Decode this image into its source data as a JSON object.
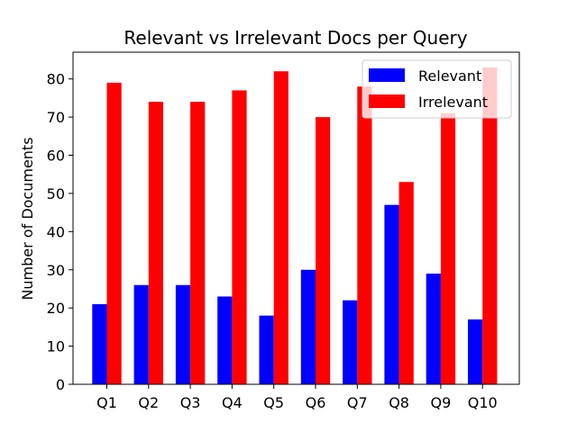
{
  "chart_data": {
    "type": "bar",
    "title": "Relevant vs Irrelevant Docs per Query",
    "xlabel": "",
    "ylabel": "Number of Documents",
    "categories": [
      "Q1",
      "Q2",
      "Q3",
      "Q4",
      "Q5",
      "Q6",
      "Q7",
      "Q8",
      "Q9",
      "Q10"
    ],
    "series": [
      {
        "name": "Relevant",
        "color": "#0000ff",
        "values": [
          21,
          26,
          26,
          23,
          18,
          30,
          22,
          47,
          29,
          17
        ]
      },
      {
        "name": "Irrelevant",
        "color": "#ff0000",
        "values": [
          79,
          74,
          74,
          77,
          82,
          70,
          78,
          53,
          71,
          83
        ]
      }
    ],
    "ylim": [
      0,
      87
    ],
    "yticks": [
      0,
      10,
      20,
      30,
      40,
      50,
      60,
      70,
      80
    ],
    "grid": false,
    "legend_position": "top-right"
  }
}
